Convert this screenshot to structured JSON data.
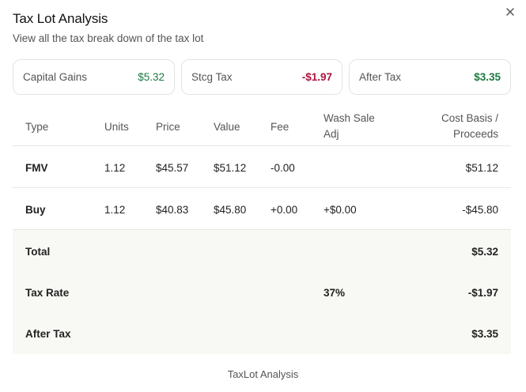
{
  "header": {
    "title": "Tax Lot Analysis",
    "subtitle": "View all the tax break down of the tax lot"
  },
  "summary_cards": [
    {
      "label": "Capital Gains",
      "value": "$5.32",
      "tone": "positive"
    },
    {
      "label": "Stcg Tax",
      "value": "-$1.97",
      "tone": "negative"
    },
    {
      "label": "After Tax",
      "value": "$3.35",
      "tone": "positive"
    }
  ],
  "table": {
    "headers": {
      "type": "Type",
      "units": "Units",
      "price": "Price",
      "value": "Value",
      "fee": "Fee",
      "wash_line1": "Wash Sale",
      "wash_line2": "Adj",
      "cost_line1": "Cost Basis /",
      "cost_line2": "Proceeds"
    },
    "rows": [
      {
        "type": "FMV",
        "units": "1.12",
        "price": "$45.57",
        "value": "$51.12",
        "fee": "-0.00",
        "wash": "",
        "cost": "$51.12"
      },
      {
        "type": "Buy",
        "units": "1.12",
        "price": "$40.83",
        "value": "$45.80",
        "fee": "+0.00",
        "wash": "+$0.00",
        "cost": "-$45.80"
      }
    ],
    "summary": [
      {
        "label": "Total",
        "mid": "",
        "value": "$5.32"
      },
      {
        "label": "Tax Rate",
        "mid": "37%",
        "value": "-$1.97"
      },
      {
        "label": "After Tax",
        "mid": "",
        "value": "$3.35"
      }
    ]
  },
  "footer": "TaxLot Analysis",
  "colors": {
    "positive": "#1a7a3e",
    "negative": "#a8163f",
    "summary_bg": "#f8f8f4",
    "border": "#e3e3e3"
  },
  "icons": {
    "close": "close-icon"
  }
}
